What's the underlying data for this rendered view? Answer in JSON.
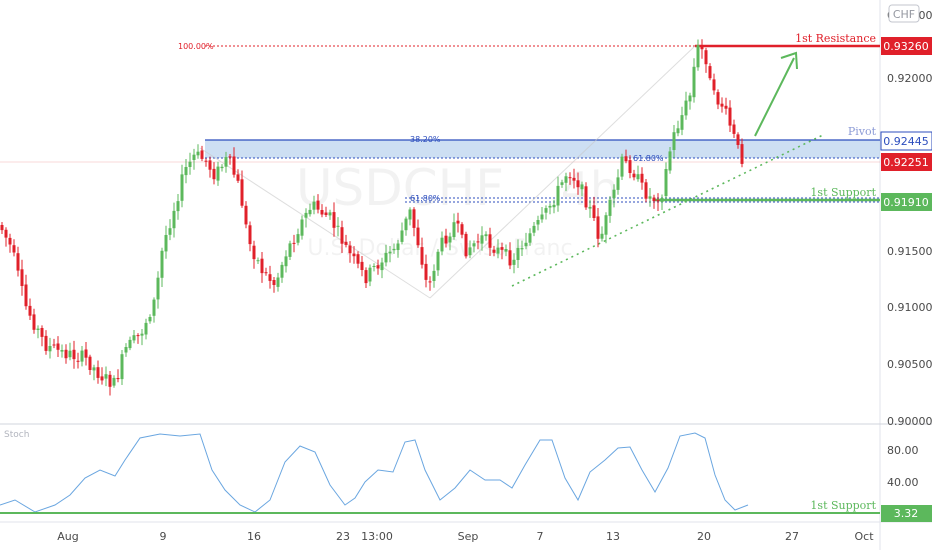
{
  "header": {
    "currency": "CHF"
  },
  "watermark": {
    "symbol": "USDCHF",
    "timeframe": "4h",
    "exchange": "U.S. Dollar / Swiss Franc"
  },
  "colors": {
    "up": "#5cb85c",
    "down": "#e0202a",
    "resistance": "#e0202a",
    "pivot": "#2c4dbd",
    "support": "#5cb85c",
    "arrow": "#5cb85c",
    "stoch": "#6aa6e0"
  },
  "levels": {
    "resistance": {
      "label": "1st Resistance",
      "value": "0.93260"
    },
    "pivot": {
      "label": "Pivot",
      "value": "0.92445"
    },
    "last": {
      "value": "0.92251"
    },
    "support": {
      "label": "1st Support",
      "value": "0.91910"
    }
  },
  "fib": {
    "f100": "100.00%",
    "f382": "38.20%",
    "f618": "61.80%",
    "f618b": "61.80%"
  },
  "stoch": {
    "label": "Stoch",
    "support_label": "1st Support",
    "support_value": "3.32",
    "ticks": [
      "80.00",
      "40.00"
    ]
  },
  "chart_data": {
    "type": "candlestick",
    "price_axis": {
      "ticks": [
        "0.93000",
        "0.92000",
        "0.91500",
        "0.91000",
        "0.90500",
        "0.90000"
      ],
      "range": [
        0.8997,
        0.9367
      ]
    },
    "x_axis": {
      "labels": [
        "Aug",
        "9",
        "16",
        "23",
        "13:00",
        "Sep",
        "7",
        "13",
        "20",
        "27",
        "Oct"
      ]
    },
    "levels": {
      "resistance": 0.9326,
      "pivot": 0.92445,
      "last": 0.92251,
      "support": 0.9191
    },
    "stoch_axis": {
      "range": [
        0,
        100
      ],
      "support": 3.32
    }
  }
}
